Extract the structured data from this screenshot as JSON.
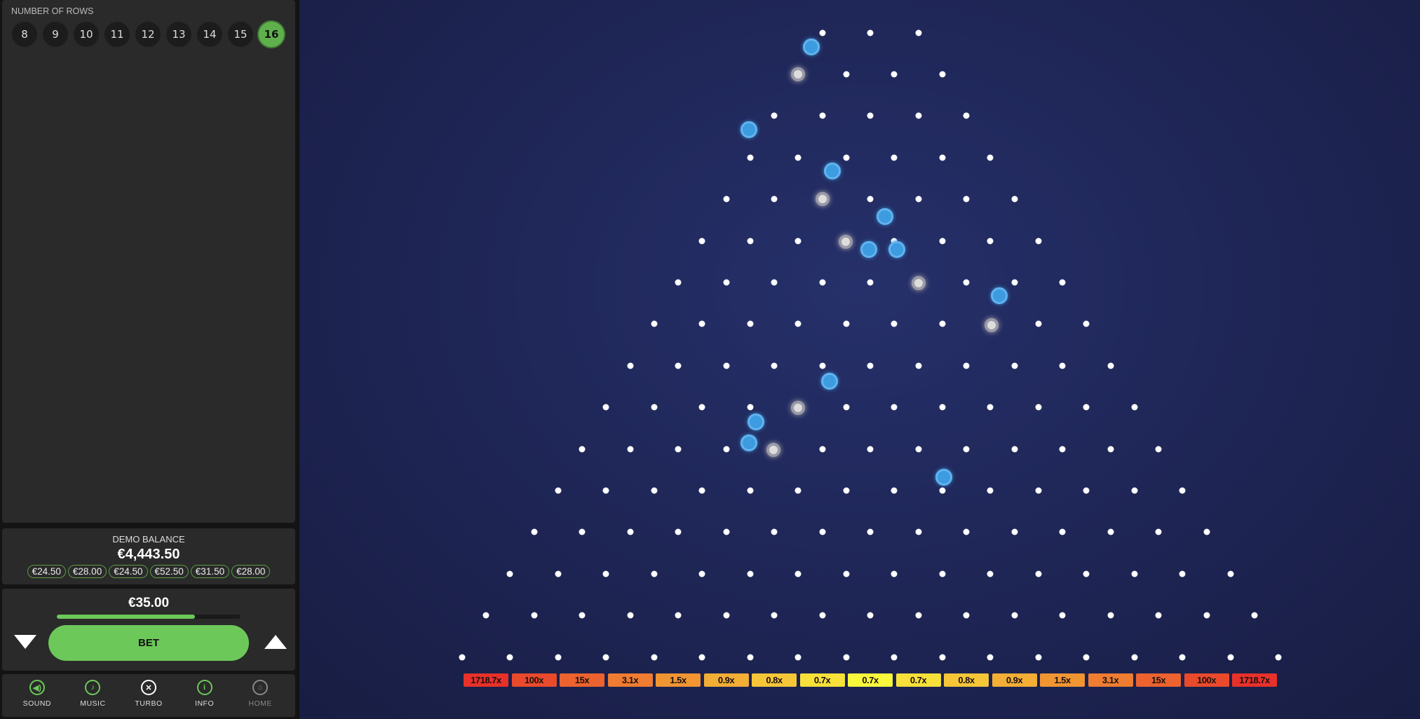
{
  "rows": {
    "label": "NUMBER OF ROWS",
    "options": [
      "8",
      "9",
      "10",
      "11",
      "12",
      "13",
      "14",
      "15",
      "16"
    ],
    "selected": "16"
  },
  "balance": {
    "label": "DEMO BALANCE",
    "value": "€4,443.50",
    "history": [
      "€24.50",
      "€28.00",
      "€24.50",
      "€52.50",
      "€31.50",
      "€28.00"
    ]
  },
  "bet": {
    "amount": "€35.00",
    "level_percent": 75,
    "button": "BET"
  },
  "controls": [
    {
      "label": "SOUND",
      "icon": "speaker-icon"
    },
    {
      "label": "MUSIC",
      "icon": "music-note-icon"
    },
    {
      "label": "TURBO",
      "icon": "turbo-icon"
    },
    {
      "label": "INFO",
      "icon": "info-icon"
    },
    {
      "label": "HOME",
      "icon": "home-icon"
    }
  ],
  "board": {
    "rows": 16,
    "multipliers": [
      "1718.7x",
      "100x",
      "15x",
      "3.1x",
      "1.5x",
      "0.9x",
      "0.8x",
      "0.7x",
      "0.7x",
      "0.7x",
      "0.8x",
      "0.9x",
      "1.5x",
      "3.1x",
      "15x",
      "100x",
      "1718.7x"
    ],
    "colors": {
      "edge": "#e8312a",
      "mid": "#f9f93c",
      "background": "#1e2552",
      "ball": "#3d9be0"
    }
  }
}
